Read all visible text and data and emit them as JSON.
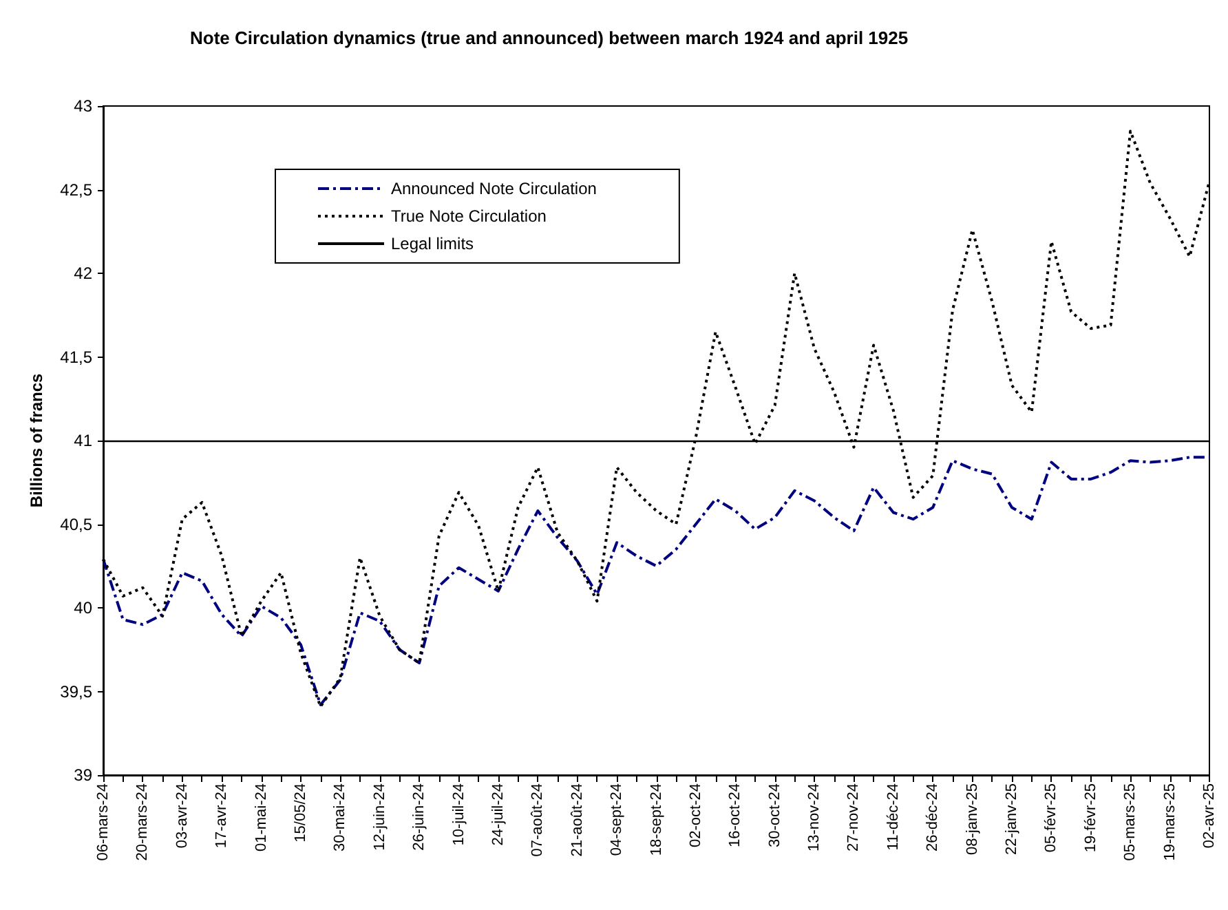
{
  "chart_data": {
    "type": "line",
    "title": "Note Circulation dynamics (true and announced) between march 1924 and april 1925",
    "ylabel": "Billions of francs",
    "categories": [
      "06-mars-24",
      null,
      "20-mars-24",
      null,
      "03-avr-24",
      null,
      "17-avr-24",
      null,
      "01-mai-24",
      null,
      "15/05/24",
      null,
      "30-mai-24",
      null,
      "12-juin-24",
      null,
      "26-juin-24",
      null,
      "10-juil-24",
      null,
      "24-juil-24",
      null,
      "07-août-24",
      null,
      "21-août-24",
      null,
      "04-sept-24",
      null,
      "18-sept-24",
      null,
      "02-oct-24",
      null,
      "16-oct-24",
      null,
      "30-oct-24",
      null,
      "13-nov-24",
      null,
      "27-nov-24",
      null,
      "11-déc-24",
      null,
      "26-déc-24",
      null,
      "08-janv-25",
      null,
      "22-janv-25",
      null,
      "05-févr-25",
      null,
      "19-févr-25",
      null,
      "05-mars-25",
      null,
      "19-mars-25",
      null,
      "02-avr-25"
    ],
    "series": [
      {
        "name": "Announced Note Circulation",
        "color": "#000080",
        "line_style": "dashed",
        "values": [
          40.29,
          39.93,
          39.9,
          39.96,
          40.21,
          40.16,
          39.96,
          39.83,
          40.01,
          39.94,
          39.78,
          39.42,
          39.57,
          39.97,
          39.92,
          39.75,
          39.67,
          40.13,
          40.24,
          40.17,
          40.1,
          40.35,
          40.58,
          40.42,
          40.28,
          40.08,
          40.39,
          40.31,
          40.25,
          40.35,
          40.5,
          40.65,
          40.58,
          40.47,
          40.54,
          40.7,
          40.64,
          40.54,
          40.46,
          40.72,
          40.57,
          40.53,
          40.6,
          40.88,
          40.83,
          40.8,
          40.6,
          40.53,
          40.87,
          40.77,
          40.77,
          40.81,
          40.88,
          40.87,
          40.88,
          40.9,
          40.9
        ]
      },
      {
        "name": "True Note Circulation",
        "color": "#000000",
        "line_style": "dotted",
        "values": [
          40.29,
          40.07,
          40.12,
          39.95,
          40.53,
          40.63,
          40.31,
          39.83,
          40.04,
          40.21,
          39.73,
          39.41,
          39.58,
          40.3,
          39.95,
          39.75,
          39.67,
          40.43,
          40.69,
          40.49,
          40.1,
          40.6,
          40.84,
          40.45,
          40.28,
          40.04,
          40.84,
          40.69,
          40.58,
          40.5,
          41.02,
          41.65,
          41.32,
          40.98,
          41.21,
          42.0,
          41.55,
          41.29,
          40.96,
          41.57,
          41.18,
          40.66,
          40.79,
          41.78,
          42.26,
          41.83,
          41.33,
          41.17,
          42.19,
          41.77,
          41.67,
          41.69,
          42.85,
          42.54,
          42.33,
          42.1,
          42.55
        ]
      }
    ],
    "ref_lines": [
      {
        "axis": "y",
        "value": 41,
        "label": "Legal limits",
        "color": "#000000",
        "line_style": "solid"
      }
    ],
    "ylim": [
      39,
      43
    ],
    "yticks": [
      39,
      {
        "value": 39.5,
        "label": "39,5"
      },
      40,
      {
        "value": 40.5,
        "label": "40,5"
      },
      41,
      {
        "value": 41.5,
        "label": "41,5"
      },
      42,
      {
        "value": 42.5,
        "label": "42,5"
      },
      43
    ],
    "grid": false,
    "legend": "top left",
    "marker": "none"
  }
}
